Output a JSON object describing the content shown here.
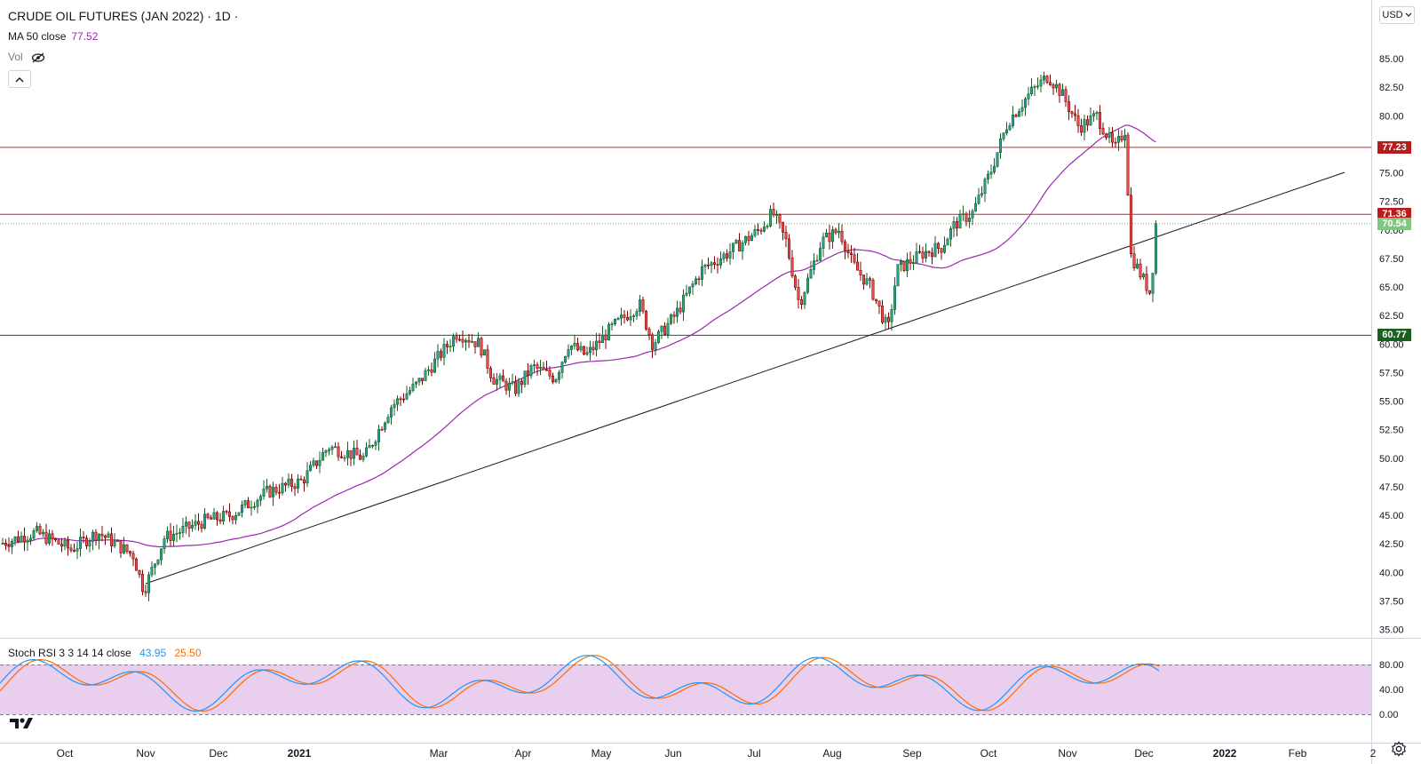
{
  "header": {
    "title": "CRUDE OIL FUTURES (JAN 2022) · 1D ·",
    "ma_label": "MA 50 close",
    "ma_value": "77.52",
    "vol_label": "Vol"
  },
  "currency": "USD",
  "colors": {
    "bull": "#26a69a",
    "bull_dark": "#1b5e20",
    "bear": "#ef5350",
    "bear_dark": "#7f0000",
    "ma": "#9c27b0",
    "resistance": "#c62828",
    "support": "#1b5e20",
    "last": "#81c784",
    "stoch_k": "#2196f3",
    "stoch_d": "#ff6d00",
    "stoch_band": "#e1bee7"
  },
  "price_axis": {
    "ticks": [
      "85.00",
      "82.50",
      "80.00",
      "77.50",
      "75.00",
      "72.50",
      "70.00",
      "67.50",
      "65.00",
      "62.50",
      "60.00",
      "57.50",
      "55.00",
      "52.50",
      "50.00",
      "47.50",
      "45.00",
      "42.50",
      "40.00",
      "37.50",
      "35.00"
    ],
    "tick_values": [
      85,
      82.5,
      80,
      77.5,
      75,
      72.5,
      70,
      67.5,
      65,
      62.5,
      60,
      57.5,
      55,
      52.5,
      50,
      47.5,
      45,
      42.5,
      40,
      37.5,
      35
    ]
  },
  "price_labels": [
    {
      "text": "77.23",
      "value": 77.23,
      "color": "#b71c1c"
    },
    {
      "text": "71.36",
      "value": 71.36,
      "color": "#b71c1c"
    },
    {
      "text": "70.54",
      "value": 70.54,
      "color": "#81c784"
    },
    {
      "text": "60.77",
      "value": 60.77,
      "color": "#1b5e20"
    }
  ],
  "horizontal_lines": [
    {
      "value": 77.23,
      "color": "#c62828"
    },
    {
      "value": 71.36,
      "color": "#c62828"
    },
    {
      "value": 60.77,
      "color": "#1b5e20"
    }
  ],
  "time_axis": {
    "labels": [
      "Oct",
      "Nov",
      "Dec",
      "2021",
      "Mar",
      "Apr",
      "May",
      "Jun",
      "Jul",
      "Aug",
      "Sep",
      "Oct",
      "Nov",
      "Dec",
      "2022",
      "Feb",
      "2"
    ]
  },
  "stoch_rsi": {
    "label": "Stoch RSI 3 3 14 14 close",
    "k": "43.95",
    "d": "25.50",
    "axis": [
      "80.00",
      "40.00",
      "0.00"
    ],
    "axis_values": [
      80,
      40,
      0
    ]
  },
  "chart_data": {
    "type": "candlestick",
    "symbol": "CRUDE OIL FUTURES (JAN 2022)",
    "interval": "1D",
    "approx_close_path": [
      {
        "t": "2020-10",
        "close": 41.5
      },
      {
        "t": "2020-11-02",
        "close": 38.2
      },
      {
        "t": "2020-12",
        "close": 45.5
      },
      {
        "t": "2021-01",
        "close": 52.0
      },
      {
        "t": "2021-03-05",
        "close": 60.5
      },
      {
        "t": "2021-03-24",
        "close": 57.0
      },
      {
        "t": "2021-04",
        "close": 59.5
      },
      {
        "t": "2021-05",
        "close": 64.0
      },
      {
        "t": "2021-06",
        "close": 70.0
      },
      {
        "t": "2021-07-06",
        "close": 71.0
      },
      {
        "t": "2021-07-20",
        "close": 63.5
      },
      {
        "t": "2021-08-20",
        "close": 61.0
      },
      {
        "t": "2021-09",
        "close": 67.5
      },
      {
        "t": "2021-10",
        "close": 80.0
      },
      {
        "t": "2021-10-26",
        "close": 83.5
      },
      {
        "t": "2021-11-25",
        "close": 78.5
      },
      {
        "t": "2021-11-26",
        "close": 68.0
      },
      {
        "t": "2021-12-02",
        "close": 63.5
      },
      {
        "t": "2021-12-07",
        "close": 70.54
      }
    ],
    "ma50_last": 77.52,
    "levels": [
      77.23,
      71.36,
      60.77
    ],
    "last_price": 70.54
  }
}
